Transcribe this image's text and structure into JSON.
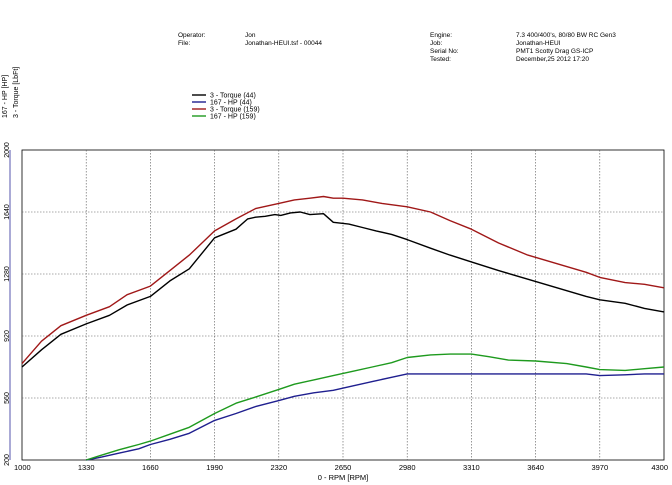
{
  "header": {
    "left": [
      {
        "label": "Operator:",
        "value": "Jon"
      },
      {
        "label": "File:",
        "value": "Jonathan-HEUI.tsf - 00044"
      }
    ],
    "right": [
      {
        "label": "Engine:",
        "value": "7.3 400/400's, 80/80 BW RC Gen3"
      },
      {
        "label": "Job:",
        "value": "Jonathan-HEUI"
      },
      {
        "label": "Serial No:",
        "value": "PMT1 Scotty Drag GS-ICP"
      },
      {
        "label": "Tested:",
        "value": "December,25 2012 17:20"
      }
    ]
  },
  "y_axis_labels": {
    "hp": "167 - HP [HP]",
    "torque": "3 - Torque [LbFt]"
  },
  "chart_data": {
    "type": "line",
    "xlabel": "0 - RPM [RPM]",
    "xlim": [
      1000,
      4300
    ],
    "ylim": [
      200,
      2000
    ],
    "x_ticks": [
      1000,
      1330,
      1660,
      1990,
      2320,
      2650,
      2980,
      3310,
      3640,
      3970,
      4300
    ],
    "y_ticks": [
      200,
      560,
      920,
      1280,
      1640,
      2000
    ],
    "grid": true,
    "legend": "top-left",
    "series": [
      {
        "name": "3 - Torque (44)",
        "color": "#000000",
        "x": [
          1000,
          1100,
          1200,
          1330,
          1450,
          1540,
          1660,
          1760,
          1860,
          1990,
          2100,
          2160,
          2200,
          2250,
          2300,
          2330,
          2380,
          2430,
          2480,
          2550,
          2600,
          2680,
          2750,
          2820,
          2900,
          2980,
          3100,
          3200,
          3310,
          3450,
          3600,
          3750,
          3900,
          3970,
          4100,
          4200,
          4300
        ],
        "y": [
          740,
          840,
          930,
          990,
          1040,
          1100,
          1150,
          1240,
          1310,
          1490,
          1540,
          1600,
          1610,
          1615,
          1625,
          1620,
          1635,
          1640,
          1625,
          1630,
          1580,
          1570,
          1550,
          1530,
          1510,
          1480,
          1430,
          1390,
          1350,
          1300,
          1250,
          1200,
          1150,
          1130,
          1110,
          1080,
          1060
        ]
      },
      {
        "name": "167 - HP (44)",
        "color": "#1f1f8f",
        "x": [
          1330,
          1400,
          1500,
          1600,
          1660,
          1760,
          1860,
          1990,
          2100,
          2200,
          2320,
          2400,
          2500,
          2600,
          2700,
          2800,
          2900,
          2980,
          3100,
          3310,
          3500,
          3700,
          3900,
          3970,
          4100,
          4200,
          4300
        ],
        "y": [
          200,
          215,
          240,
          265,
          290,
          320,
          355,
          430,
          470,
          510,
          545,
          570,
          590,
          605,
          630,
          655,
          680,
          700,
          700,
          700,
          700,
          700,
          700,
          690,
          695,
          700,
          700
        ]
      },
      {
        "name": "3 - Torque (159)",
        "color": "#a01818",
        "x": [
          1000,
          1100,
          1200,
          1330,
          1450,
          1540,
          1660,
          1760,
          1860,
          1990,
          2100,
          2200,
          2320,
          2400,
          2480,
          2550,
          2600,
          2650,
          2750,
          2850,
          2980,
          3100,
          3200,
          3310,
          3450,
          3600,
          3750,
          3900,
          3970,
          4100,
          4200,
          4300
        ],
        "y": [
          760,
          890,
          980,
          1040,
          1090,
          1160,
          1210,
          1300,
          1390,
          1530,
          1600,
          1660,
          1690,
          1710,
          1720,
          1730,
          1720,
          1720,
          1710,
          1690,
          1670,
          1640,
          1590,
          1540,
          1460,
          1390,
          1340,
          1290,
          1260,
          1230,
          1220,
          1200
        ]
      },
      {
        "name": "167 - HP (159)",
        "color": "#1e9a1e",
        "x": [
          1330,
          1400,
          1500,
          1600,
          1660,
          1760,
          1860,
          1990,
          2100,
          2200,
          2320,
          2400,
          2500,
          2600,
          2700,
          2800,
          2900,
          2980,
          3100,
          3200,
          3310,
          3400,
          3500,
          3640,
          3800,
          3900,
          3970,
          4100,
          4200,
          4300
        ],
        "y": [
          200,
          225,
          260,
          290,
          310,
          350,
          390,
          470,
          530,
          565,
          610,
          640,
          665,
          690,
          715,
          740,
          765,
          795,
          810,
          815,
          815,
          800,
          780,
          775,
          760,
          740,
          725,
          720,
          730,
          740
        ]
      }
    ]
  }
}
